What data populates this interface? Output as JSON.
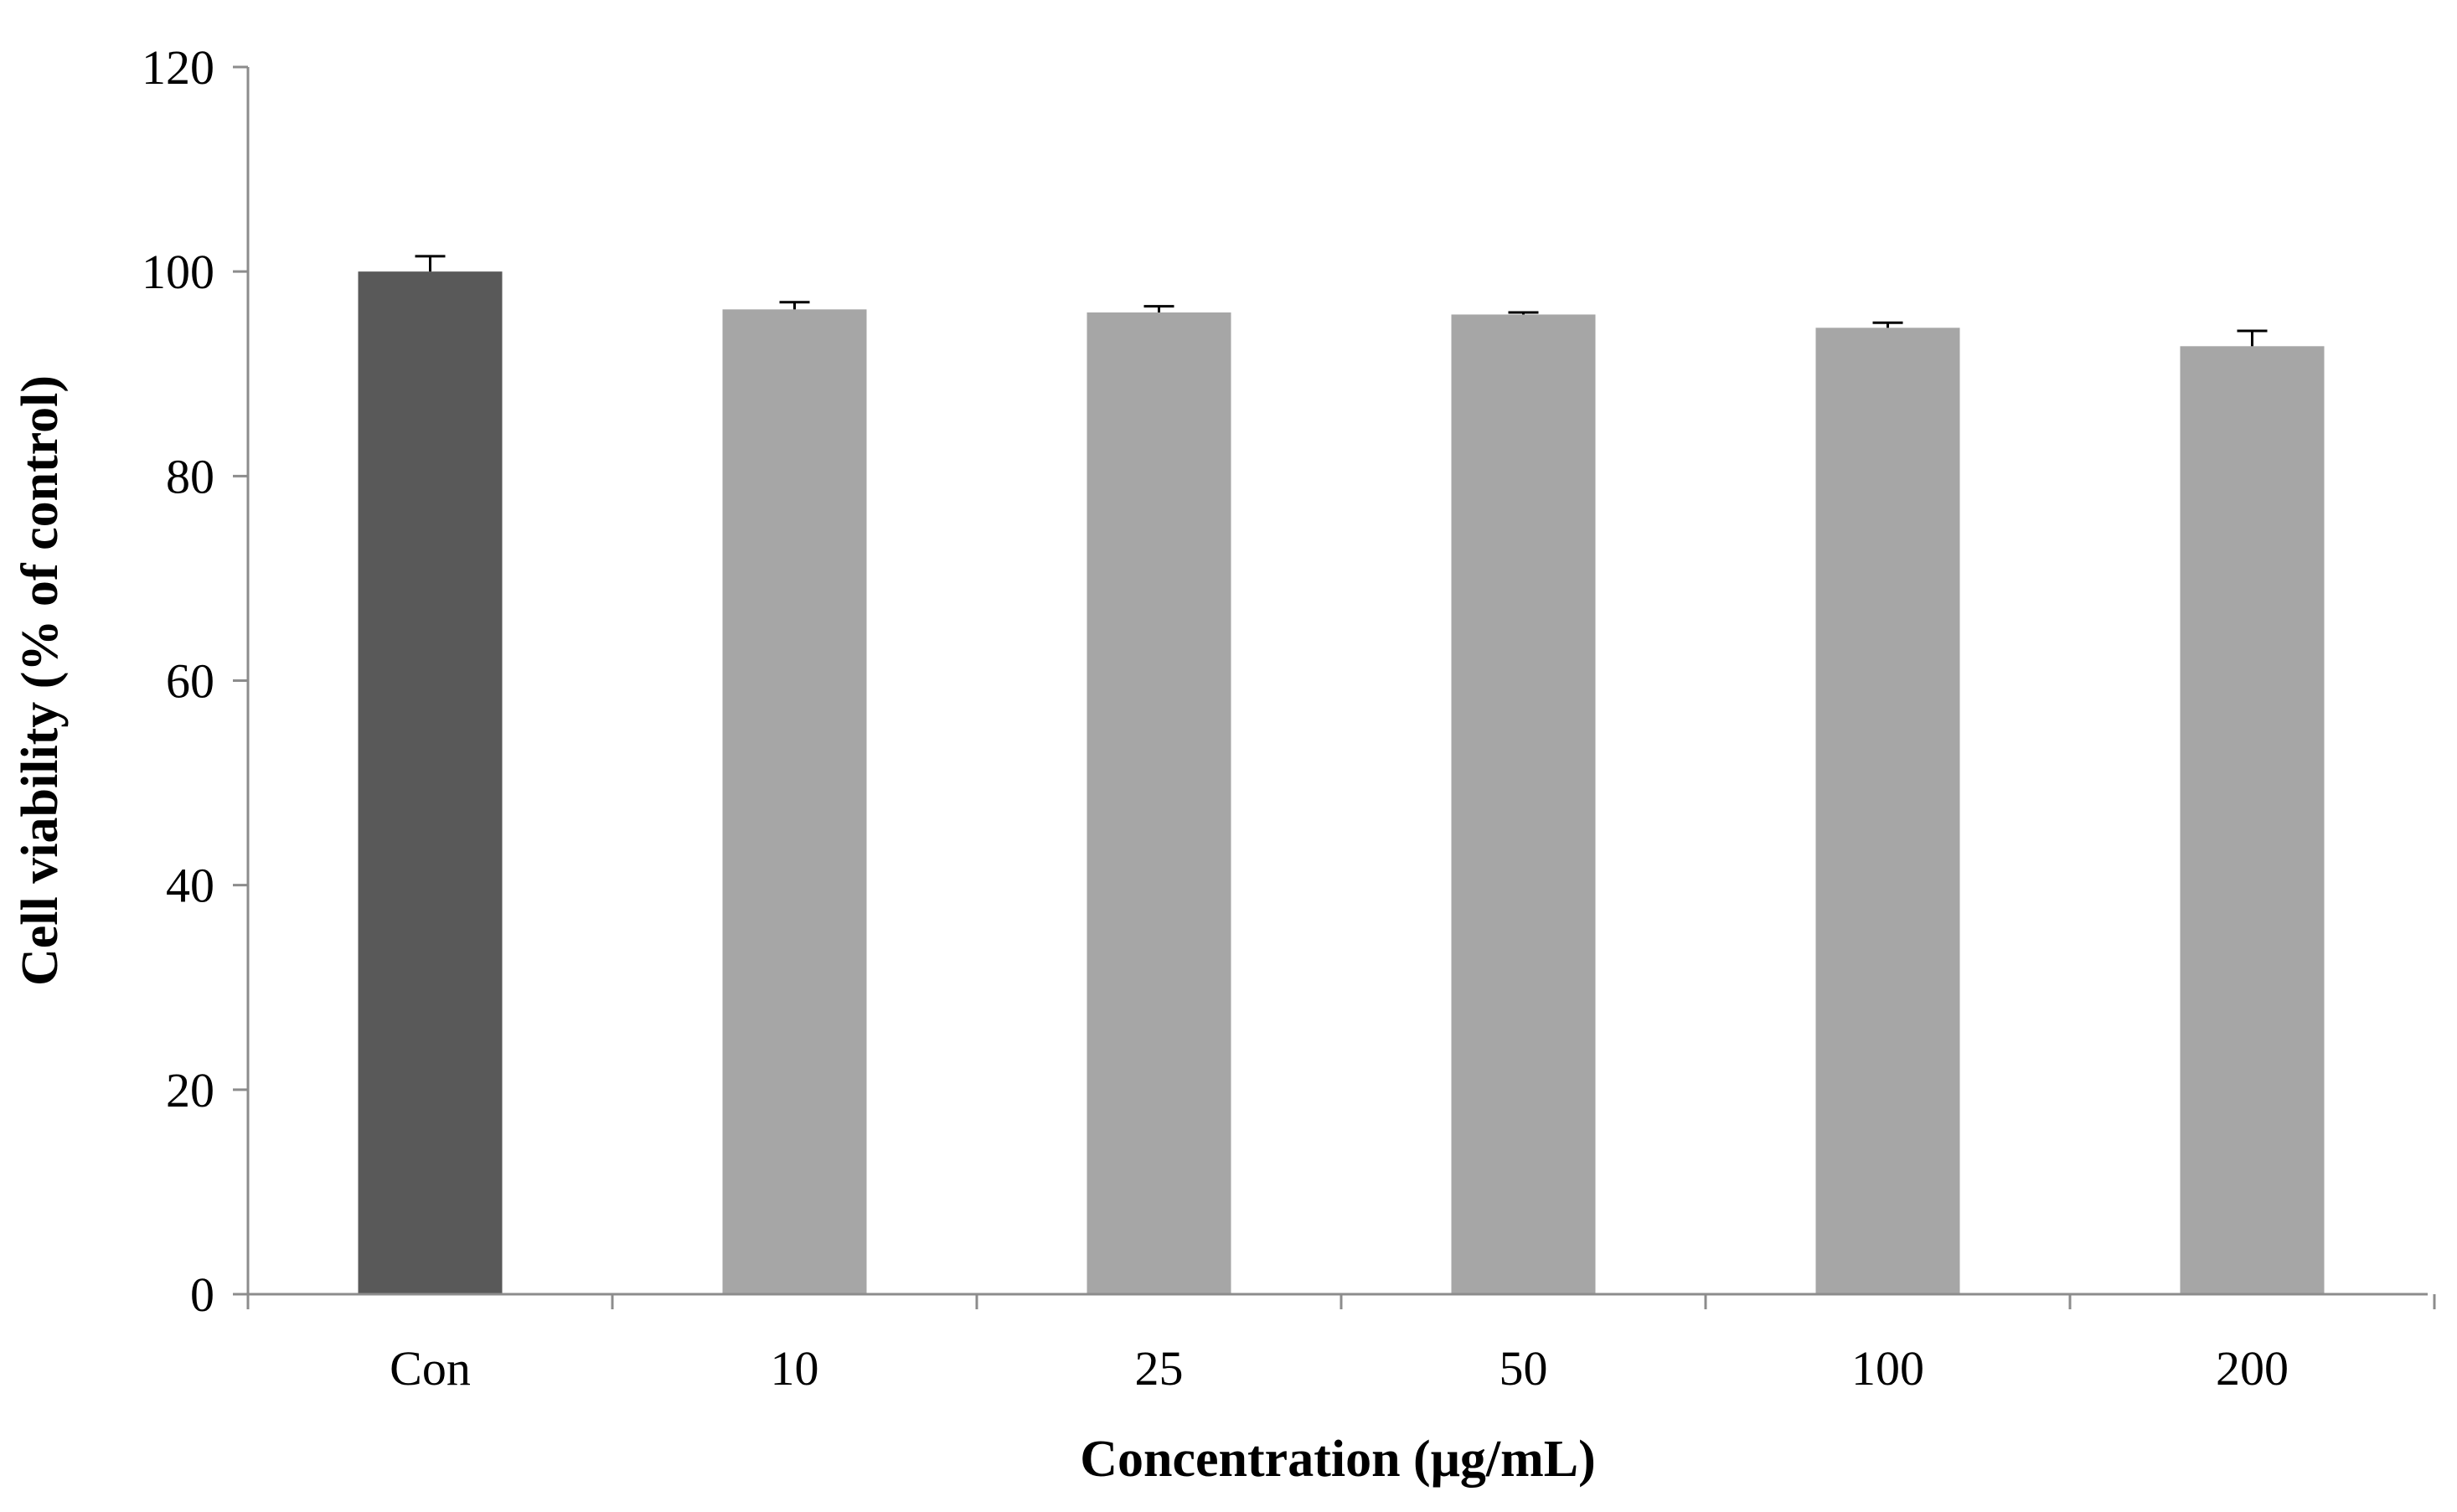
{
  "chart_data": {
    "type": "bar",
    "title": "",
    "xlabel": "Concentration (μg/mL)",
    "ylabel": "Cell viability (% of control)",
    "categories": [
      "Con",
      "10",
      "25",
      "50",
      "100",
      "200"
    ],
    "series": [
      {
        "values": [
          100.0,
          96.3,
          96.0,
          95.8,
          94.5,
          92.7
        ],
        "errors": [
          1.5,
          0.7,
          0.6,
          0.2,
          0.5,
          1.5
        ]
      }
    ],
    "bar_colors": [
      "#595959",
      "#a6a6a6",
      "#a6a6a6",
      "#a6a6a6",
      "#a6a6a6",
      "#a6a6a6"
    ],
    "ylim": [
      0,
      120
    ],
    "yticks": [
      "0",
      "20",
      "40",
      "60",
      "80",
      "100",
      "120"
    ],
    "grid": false,
    "legend": "none"
  }
}
